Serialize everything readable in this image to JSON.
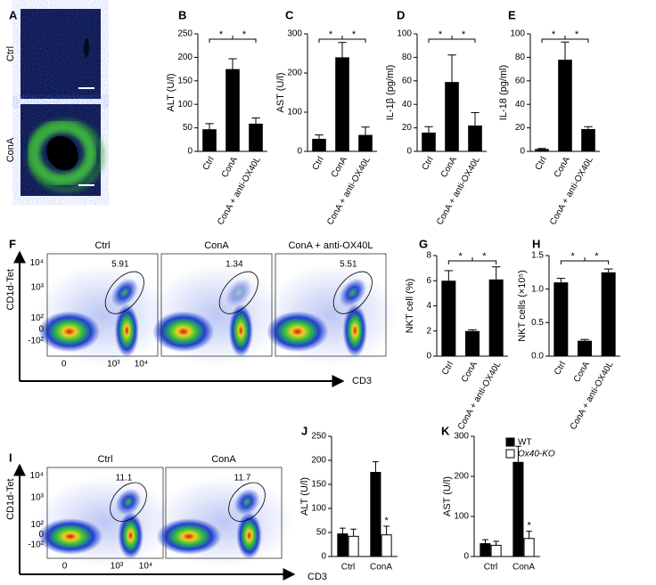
{
  "micrographs": {
    "panel": "A",
    "labels": [
      "Ctrl",
      "ConA"
    ]
  },
  "flow_cytometry": [
    {
      "panel": "F",
      "y_label": "CD1d-Tet",
      "x_label": "CD3",
      "yticks": [
        "10⁴",
        "10³",
        "10²",
        "0",
        "-10²"
      ],
      "xticks": [
        "0",
        "10³",
        "10⁴"
      ],
      "plots": [
        {
          "title": "Ctrl",
          "gate": "5.91"
        },
        {
          "title": "ConA",
          "gate": "1.34"
        },
        {
          "title": "ConA + anti-OX40L",
          "gate": "5.51"
        }
      ]
    },
    {
      "panel": "I",
      "y_label": "CD1d-Tet",
      "x_label": "CD3",
      "yticks": [
        "10⁴",
        "10³",
        "10²",
        "0",
        "-10²"
      ],
      "xticks": [
        "0",
        "10³",
        "10⁴"
      ],
      "plots": [
        {
          "title": "Ctrl",
          "gate": "11.1"
        },
        {
          "title": "ConA",
          "gate": "11.7"
        }
      ]
    }
  ],
  "chart_data": [
    {
      "type": "bar",
      "panel": "B",
      "ylabel": "ALT (U/l)",
      "categories": [
        "Ctrl",
        "ConA",
        "ConA + anti-OX40L"
      ],
      "values": [
        47,
        175,
        59
      ],
      "errors": [
        12,
        22,
        12
      ],
      "color": "#000000",
      "ylim": [
        0,
        250
      ],
      "yticks": [
        0,
        50,
        100,
        150,
        200,
        250
      ],
      "annotations": [
        "*",
        "*"
      ]
    },
    {
      "type": "bar",
      "panel": "C",
      "ylabel": "AST (U/l)",
      "categories": [
        "Ctrl",
        "ConA",
        "ConA + anti-OX40L"
      ],
      "values": [
        32,
        240,
        42
      ],
      "errors": [
        10,
        38,
        20
      ],
      "color": "#000000",
      "ylim": [
        0,
        300
      ],
      "yticks": [
        0,
        100,
        200,
        300
      ],
      "annotations": [
        "*",
        "*"
      ]
    },
    {
      "type": "bar",
      "panel": "D",
      "ylabel": "IL-1β (pg/ml)",
      "categories": [
        "Ctrl",
        "ConA",
        "ConA + anti-OX40L"
      ],
      "values": [
        16,
        59,
        22
      ],
      "errors": [
        5,
        23,
        11
      ],
      "color": "#000000",
      "ylim": [
        0,
        100
      ],
      "yticks": [
        0,
        20,
        40,
        60,
        80,
        100
      ],
      "annotations": [
        "*",
        "*"
      ]
    },
    {
      "type": "bar",
      "panel": "E",
      "ylabel": "IL-18 (pg/ml)",
      "categories": [
        "Ctrl",
        "ConA",
        "ConA + anti-OX40L"
      ],
      "values": [
        2,
        78,
        19
      ],
      "errors": [
        0.5,
        15,
        2
      ],
      "color": "#000000",
      "ylim": [
        0,
        100
      ],
      "yticks": [
        0,
        20,
        40,
        60,
        80,
        100
      ],
      "annotations": [
        "*",
        "*"
      ]
    },
    {
      "type": "bar",
      "panel": "G",
      "ylabel": "NKT cell (%)",
      "categories": [
        "Ctrl",
        "ConA",
        "ConA + anti-OX40L"
      ],
      "values": [
        6,
        2,
        6.1
      ],
      "errors": [
        0.8,
        0.1,
        1
      ],
      "color": "#000000",
      "ylim": [
        0,
        8
      ],
      "yticks": [
        0,
        2,
        4,
        6,
        8
      ],
      "annotations": [
        "*",
        "*"
      ]
    },
    {
      "type": "bar",
      "panel": "H",
      "ylabel": "NKT cells (×10⁵)",
      "categories": [
        "Ctrl",
        "ConA",
        "ConA + anti-OX40L"
      ],
      "values": [
        1.1,
        0.23,
        1.25
      ],
      "errors": [
        0.06,
        0.02,
        0.05
      ],
      "color": "#000000",
      "ylim": [
        0,
        1.5
      ],
      "yticks": [
        {
          "value": 0,
          "label": "0.0"
        },
        0.5,
        {
          "value": 1,
          "label": "1.0"
        },
        1.5
      ],
      "annotations": [
        "*",
        "*"
      ]
    },
    {
      "type": "grouped_bar",
      "panel": "J",
      "ylabel": "ALT (U/l)",
      "categories": [
        "Ctrl",
        "ConA"
      ],
      "series": [
        {
          "color": "#000000",
          "values": [
            47,
            175
          ],
          "errors": [
            12,
            22
          ]
        },
        {
          "color": "#ffffff",
          "values": [
            42,
            45
          ],
          "errors": [
            15,
            18
          ]
        }
      ],
      "ylim": [
        0,
        250
      ],
      "yticks": [
        0,
        50,
        100,
        150,
        200,
        250
      ],
      "annotations": [
        "*"
      ]
    },
    {
      "type": "grouped_bar",
      "panel": "K",
      "ylabel": "AST (U/l)",
      "categories": [
        "Ctrl",
        "ConA"
      ],
      "series": [
        {
          "name": "WT",
          "color": "#000000",
          "values": [
            32,
            235
          ],
          "errors": [
            10,
            40
          ]
        },
        {
          "name": "Ox40-KO",
          "color": "#ffffff",
          "values": [
            28,
            45
          ],
          "errors": [
            10,
            18
          ]
        }
      ],
      "ylim": [
        0,
        300
      ],
      "yticks": [
        0,
        100,
        200,
        300
      ],
      "annotations": [
        "*"
      ],
      "legend": "top-right"
    }
  ]
}
